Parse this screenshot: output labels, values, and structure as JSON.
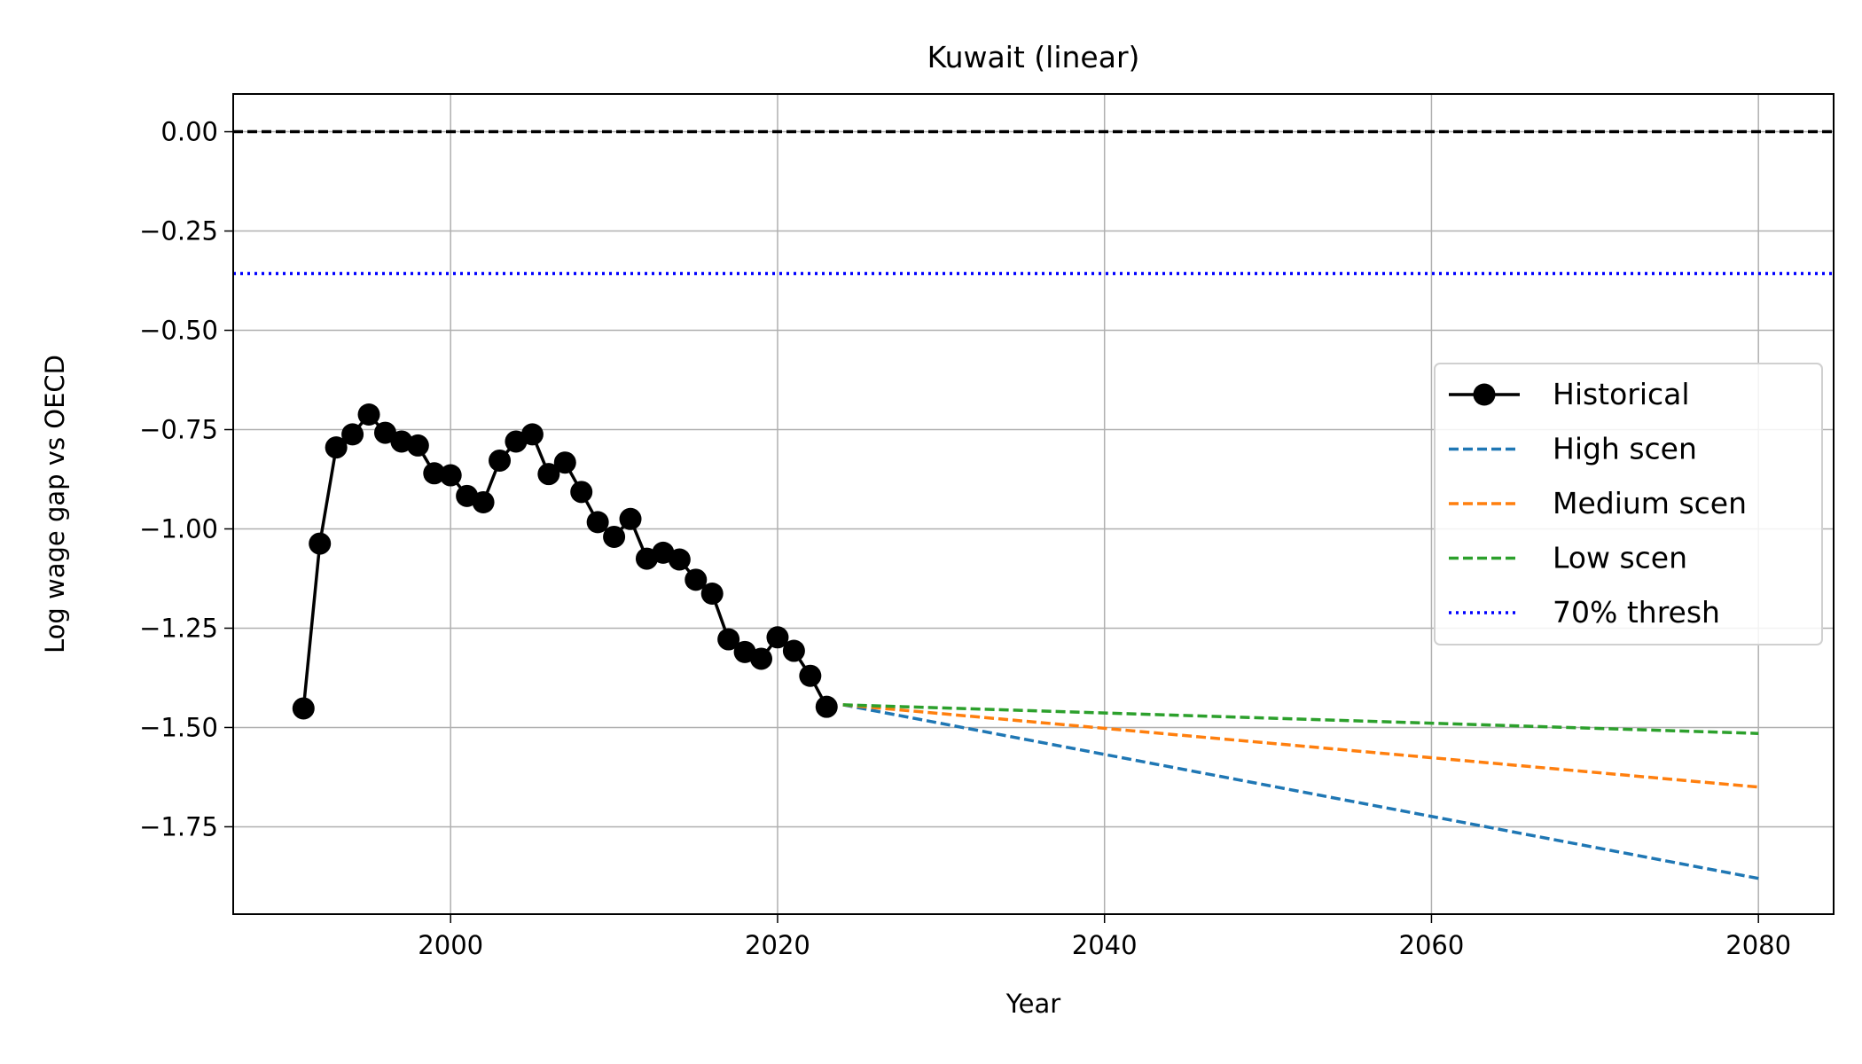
{
  "chart_data": {
    "type": "line",
    "title": "Kuwait (linear)",
    "xlabel": "Year",
    "ylabel": "Log wage gap vs OECD",
    "xlim": [
      1986.7,
      2084.6
    ],
    "ylim": [
      -1.97,
      0.095
    ],
    "xticks": [
      2000,
      2020,
      2040,
      2060,
      2080
    ],
    "yticks": [
      0.0,
      -0.25,
      -0.5,
      -0.75,
      -1.0,
      -1.25,
      -1.5,
      -1.75
    ],
    "ytick_labels": [
      "0.00",
      "−0.25",
      "−0.50",
      "−0.75",
      "−1.00",
      "−1.25",
      "−1.50",
      "−1.75"
    ],
    "grid": true,
    "legend_position": "center-right",
    "reference_lines": [
      {
        "y": 0.0,
        "style": "dashed",
        "color": "#000000"
      }
    ],
    "series": [
      {
        "name": "Historical",
        "style": "solid-markers",
        "color": "#000000",
        "x": [
          1991,
          1992,
          1993,
          1994,
          1995,
          1996,
          1997,
          1998,
          1999,
          2000,
          2001,
          2002,
          2003,
          2004,
          2005,
          2006,
          2007,
          2008,
          2009,
          2010,
          2011,
          2012,
          2013,
          2014,
          2015,
          2016,
          2017,
          2018,
          2019,
          2020,
          2021,
          2022,
          2023
        ],
        "y": [
          -1.452,
          -1.037,
          -0.795,
          -0.762,
          -0.712,
          -0.758,
          -0.78,
          -0.79,
          -0.86,
          -0.865,
          -0.917,
          -0.933,
          -0.828,
          -0.78,
          -0.762,
          -0.862,
          -0.833,
          -0.907,
          -0.983,
          -1.02,
          -0.975,
          -1.075,
          -1.06,
          -1.077,
          -1.128,
          -1.163,
          -1.278,
          -1.31,
          -1.327,
          -1.273,
          -1.307,
          -1.37,
          -1.448
        ]
      },
      {
        "name": "High scen",
        "style": "dashed",
        "color": "#1f77b4",
        "x": [
          2024,
          2080
        ],
        "y": [
          -1.443,
          -1.88
        ]
      },
      {
        "name": "Medium scen",
        "style": "dashed",
        "color": "#ff7f0e",
        "x": [
          2024,
          2080
        ],
        "y": [
          -1.443,
          -1.65
        ]
      },
      {
        "name": "Low scen",
        "style": "dashed",
        "color": "#2ca02c",
        "x": [
          2024,
          2080
        ],
        "y": [
          -1.443,
          -1.515
        ]
      },
      {
        "name": "70% thresh",
        "style": "dotted",
        "color": "#0000ff",
        "hline_y": -0.357
      }
    ]
  }
}
